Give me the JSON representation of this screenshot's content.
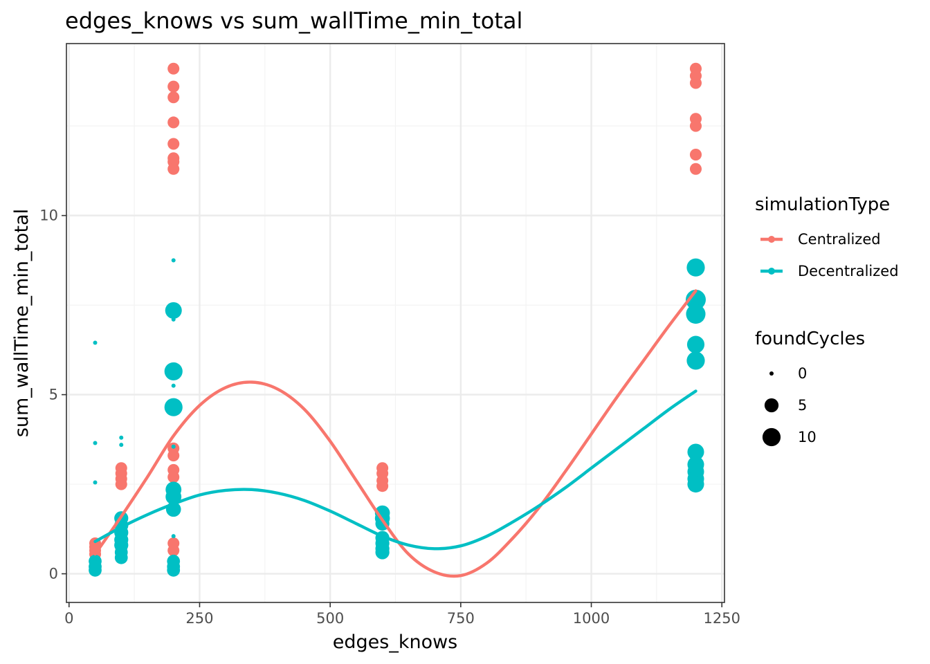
{
  "chart_data": {
    "type": "scatter",
    "title": "edges_knows  vs  sum_wallTime_min_total",
    "xlabel": "edges_knows",
    "ylabel": "sum_wallTime_min_total",
    "xlim": [
      -5,
      1255
    ],
    "ylim": [
      -0.8,
      14.8
    ],
    "x_ticks": [
      0,
      250,
      500,
      750,
      1000,
      1250
    ],
    "x_tick_labels": [
      "0",
      "250",
      "500",
      "750",
      "1000",
      "1250"
    ],
    "y_ticks": [
      0,
      5,
      10
    ],
    "y_tick_labels": [
      "0",
      "5",
      "10"
    ],
    "grid": true,
    "legend_placement": "right",
    "legends": {
      "color": {
        "title": "simulationType",
        "entries": [
          {
            "label": "Centralized",
            "color": "#F8766D"
          },
          {
            "label": "Decentralized",
            "color": "#00BFC4"
          }
        ]
      },
      "size": {
        "title": "foundCycles",
        "entries": [
          {
            "label": "0",
            "value": 0
          },
          {
            "label": "5",
            "value": 5
          },
          {
            "label": "10",
            "value": 10
          }
        ]
      }
    },
    "series": [
      {
        "name": "Centralized",
        "color": "#F8766D",
        "points": [
          {
            "x": 50,
            "y": 0.85,
            "size": 3
          },
          {
            "x": 50,
            "y": 0.75,
            "size": 3
          },
          {
            "x": 50,
            "y": 0.65,
            "size": 3
          },
          {
            "x": 50,
            "y": 0.55,
            "size": 3
          },
          {
            "x": 100,
            "y": 2.95,
            "size": 3
          },
          {
            "x": 100,
            "y": 2.8,
            "size": 3
          },
          {
            "x": 100,
            "y": 2.65,
            "size": 3
          },
          {
            "x": 100,
            "y": 2.5,
            "size": 3
          },
          {
            "x": 100,
            "y": 0.7,
            "size": 3
          },
          {
            "x": 200,
            "y": 14.1,
            "size": 3
          },
          {
            "x": 200,
            "y": 13.6,
            "size": 3
          },
          {
            "x": 200,
            "y": 13.3,
            "size": 3
          },
          {
            "x": 200,
            "y": 12.6,
            "size": 3
          },
          {
            "x": 200,
            "y": 12.0,
            "size": 3
          },
          {
            "x": 200,
            "y": 11.6,
            "size": 3
          },
          {
            "x": 200,
            "y": 11.5,
            "size": 3
          },
          {
            "x": 200,
            "y": 11.3,
            "size": 3
          },
          {
            "x": 200,
            "y": 3.5,
            "size": 3
          },
          {
            "x": 200,
            "y": 3.3,
            "size": 3
          },
          {
            "x": 200,
            "y": 2.9,
            "size": 3
          },
          {
            "x": 200,
            "y": 2.7,
            "size": 3
          },
          {
            "x": 200,
            "y": 0.85,
            "size": 3
          },
          {
            "x": 200,
            "y": 0.65,
            "size": 3
          },
          {
            "x": 600,
            "y": 2.95,
            "size": 3
          },
          {
            "x": 600,
            "y": 2.8,
            "size": 3
          },
          {
            "x": 600,
            "y": 2.6,
            "size": 3
          },
          {
            "x": 600,
            "y": 2.45,
            "size": 3
          },
          {
            "x": 600,
            "y": 0.7,
            "size": 3
          },
          {
            "x": 1200,
            "y": 14.1,
            "size": 3
          },
          {
            "x": 1200,
            "y": 13.9,
            "size": 3
          },
          {
            "x": 1200,
            "y": 13.7,
            "size": 3
          },
          {
            "x": 1200,
            "y": 12.7,
            "size": 3
          },
          {
            "x": 1200,
            "y": 12.5,
            "size": 3
          },
          {
            "x": 1200,
            "y": 11.7,
            "size": 3
          },
          {
            "x": 1200,
            "y": 11.3,
            "size": 3
          },
          {
            "x": 1200,
            "y": 3.4,
            "size": 3
          }
        ],
        "smooth": {
          "x": [
            50,
            100,
            150,
            200,
            250,
            300,
            350,
            400,
            450,
            500,
            550,
            600,
            650,
            700,
            750,
            800,
            850,
            900,
            950,
            1000,
            1050,
            1100,
            1150,
            1200
          ],
          "y": [
            0.55,
            1.6,
            2.7,
            3.85,
            4.7,
            5.2,
            5.35,
            5.15,
            4.6,
            3.7,
            2.6,
            1.5,
            0.55,
            0.05,
            -0.05,
            0.3,
            1.0,
            1.85,
            2.85,
            3.9,
            4.95,
            5.95,
            6.95,
            7.9
          ]
        }
      },
      {
        "name": "Decentralized",
        "color": "#00BFC4",
        "points": [
          {
            "x": 50,
            "y": 6.45,
            "size": 0
          },
          {
            "x": 50,
            "y": 3.65,
            "size": 0
          },
          {
            "x": 50,
            "y": 2.55,
            "size": 0
          },
          {
            "x": 50,
            "y": 0.35,
            "size": 4
          },
          {
            "x": 50,
            "y": 0.2,
            "size": 4
          },
          {
            "x": 50,
            "y": 0.1,
            "size": 4
          },
          {
            "x": 100,
            "y": 3.8,
            "size": 0
          },
          {
            "x": 100,
            "y": 3.6,
            "size": 0
          },
          {
            "x": 100,
            "y": 1.55,
            "size": 5
          },
          {
            "x": 100,
            "y": 1.35,
            "size": 5
          },
          {
            "x": 100,
            "y": 1.15,
            "size": 5
          },
          {
            "x": 100,
            "y": 0.95,
            "size": 5
          },
          {
            "x": 100,
            "y": 0.8,
            "size": 5
          },
          {
            "x": 100,
            "y": 0.6,
            "size": 4
          },
          {
            "x": 100,
            "y": 0.45,
            "size": 4
          },
          {
            "x": 200,
            "y": 8.75,
            "size": 0
          },
          {
            "x": 200,
            "y": 7.35,
            "size": 8
          },
          {
            "x": 200,
            "y": 7.1,
            "size": 0
          },
          {
            "x": 200,
            "y": 5.65,
            "size": 10
          },
          {
            "x": 200,
            "y": 5.25,
            "size": 0
          },
          {
            "x": 200,
            "y": 4.65,
            "size": 10
          },
          {
            "x": 200,
            "y": 3.55,
            "size": 0
          },
          {
            "x": 200,
            "y": 2.35,
            "size": 7
          },
          {
            "x": 200,
            "y": 2.15,
            "size": 7
          },
          {
            "x": 200,
            "y": 1.8,
            "size": 6
          },
          {
            "x": 200,
            "y": 1.05,
            "size": 0
          },
          {
            "x": 200,
            "y": 0.35,
            "size": 4
          },
          {
            "x": 200,
            "y": 0.2,
            "size": 4
          },
          {
            "x": 200,
            "y": 0.1,
            "size": 4
          },
          {
            "x": 600,
            "y": 1.7,
            "size": 6
          },
          {
            "x": 600,
            "y": 1.55,
            "size": 6
          },
          {
            "x": 600,
            "y": 1.4,
            "size": 5
          },
          {
            "x": 600,
            "y": 1.0,
            "size": 5
          },
          {
            "x": 600,
            "y": 0.85,
            "size": 5
          },
          {
            "x": 600,
            "y": 0.7,
            "size": 5
          },
          {
            "x": 600,
            "y": 0.6,
            "size": 5
          },
          {
            "x": 1200,
            "y": 8.55,
            "size": 10
          },
          {
            "x": 1200,
            "y": 7.65,
            "size": 13
          },
          {
            "x": 1200,
            "y": 7.25,
            "size": 12
          },
          {
            "x": 1200,
            "y": 6.4,
            "size": 9
          },
          {
            "x": 1200,
            "y": 5.95,
            "size": 10
          },
          {
            "x": 1200,
            "y": 3.4,
            "size": 8
          },
          {
            "x": 1200,
            "y": 3.05,
            "size": 8
          },
          {
            "x": 1200,
            "y": 2.85,
            "size": 8
          },
          {
            "x": 1200,
            "y": 2.65,
            "size": 8
          },
          {
            "x": 1200,
            "y": 2.5,
            "size": 8
          }
        ],
        "smooth": {
          "x": [
            50,
            100,
            150,
            200,
            250,
            300,
            350,
            400,
            450,
            500,
            550,
            600,
            650,
            700,
            750,
            800,
            850,
            900,
            950,
            1000,
            1050,
            1100,
            1150,
            1200
          ],
          "y": [
            0.9,
            1.3,
            1.65,
            1.95,
            2.2,
            2.33,
            2.35,
            2.25,
            2.05,
            1.75,
            1.4,
            1.05,
            0.8,
            0.7,
            0.78,
            1.05,
            1.45,
            1.9,
            2.4,
            2.95,
            3.5,
            4.05,
            4.6,
            5.1
          ]
        }
      }
    ]
  }
}
